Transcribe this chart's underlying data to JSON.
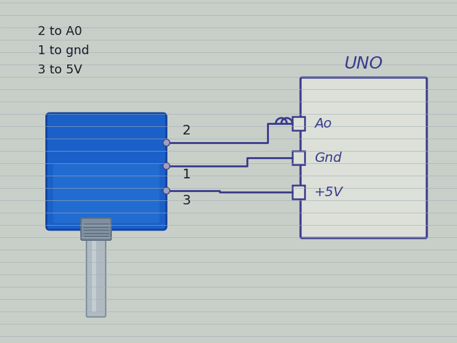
{
  "bg_color": "#b8c4c8",
  "paper_color": "#d8dfe0",
  "line_color": "#3a3a8c",
  "line_color_dark": "#1a1a3a",
  "title": "UNO",
  "labels": {
    "pin3": "3",
    "pin1": "1",
    "pin2": "2",
    "v5": "+5V",
    "gnd": "Gnd",
    "a0": "Ao"
  },
  "annotations": [
    "3 to 5V",
    "1 to gnd",
    "2 to A0"
  ],
  "pot_body_color": "#2060c0",
  "pot_shaft_color": "#a0a8b0",
  "pot_nut_color": "#8090a0",
  "fig_width": 6.66,
  "fig_height": 5.0,
  "dpi": 100
}
